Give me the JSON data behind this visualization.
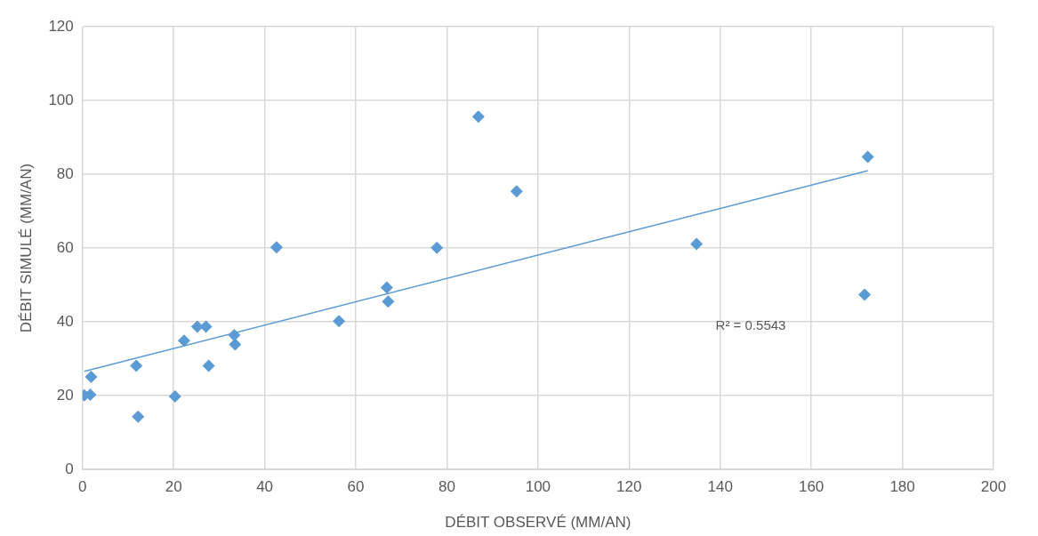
{
  "chart_data": {
    "type": "scatter",
    "xlabel": "DÉBIT OBSERVÉ (MM/AN)",
    "ylabel": "DÉBIT SIMULÉ (MM/AN)",
    "xlim": [
      0,
      200
    ],
    "xticks": [
      0,
      20,
      40,
      60,
      80,
      100,
      120,
      140,
      160,
      180,
      200
    ],
    "ylim": [
      0,
      120
    ],
    "yticks": [
      0,
      20,
      40,
      60,
      80,
      100,
      120
    ],
    "grid": true,
    "legend": false,
    "marker": "diamond",
    "annotations": [
      "R² = 0.5543"
    ],
    "series": [
      {
        "color": "#5b9bd5",
        "x": [
          0.4,
          1.7,
          1.9,
          11.8,
          12.2,
          20.3,
          22.3,
          25.2,
          27.1,
          27.7,
          33.3,
          33.5,
          42.6,
          56.3,
          66.8,
          67.1,
          77.8,
          86.9,
          95.3,
          134.8,
          171.7,
          172.4
        ],
        "values": [
          20.1,
          20.3,
          25.1,
          28.1,
          14.3,
          19.8,
          34.9,
          38.7,
          38.7,
          28.1,
          36.4,
          33.9,
          60.2,
          40.2,
          49.3,
          45.5,
          60.1,
          95.6,
          75.4,
          61.1,
          47.4,
          84.7
        ]
      },
      {
        "type": "line",
        "color": "#5b9bd5",
        "marker": "none",
        "x": [
          0.4,
          172.4
        ],
        "values": [
          26.6,
          81.0
        ]
      }
    ]
  }
}
